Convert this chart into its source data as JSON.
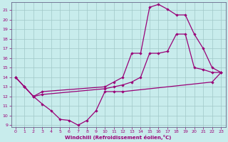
{
  "xlabel": "Windchill (Refroidissement éolien,°C)",
  "xlim": [
    -0.5,
    23.5
  ],
  "ylim": [
    8.8,
    21.8
  ],
  "xticks": [
    0,
    1,
    2,
    3,
    4,
    5,
    6,
    7,
    8,
    9,
    10,
    11,
    12,
    13,
    14,
    15,
    16,
    17,
    18,
    19,
    20,
    21,
    22,
    23
  ],
  "yticks": [
    9,
    10,
    11,
    12,
    13,
    14,
    15,
    16,
    17,
    18,
    19,
    20,
    21
  ],
  "bg_color": "#c8ecec",
  "line_color": "#990077",
  "grid_color": "#a0c8c8",
  "curve1_x": [
    0,
    1,
    2,
    3,
    4,
    5,
    6,
    7,
    8,
    9,
    10,
    11,
    12,
    22,
    23
  ],
  "curve1_y": [
    14.0,
    13.0,
    12.0,
    11.2,
    10.5,
    9.6,
    9.5,
    9.0,
    9.5,
    10.5,
    12.5,
    12.5,
    12.5,
    13.5,
    14.5
  ],
  "curve2_x": [
    0,
    1,
    2,
    3,
    10,
    11,
    12,
    13,
    14,
    15,
    16,
    17,
    18,
    19,
    20,
    21,
    22,
    23
  ],
  "curve2_y": [
    14.0,
    13.0,
    12.0,
    12.2,
    12.8,
    13.0,
    13.2,
    13.5,
    14.0,
    16.5,
    16.5,
    16.7,
    18.5,
    18.5,
    15.0,
    14.8,
    14.5,
    14.5
  ],
  "curve3_x": [
    0,
    1,
    2,
    3,
    10,
    11,
    12,
    13,
    14,
    15,
    16,
    17,
    18,
    19,
    20,
    21,
    22,
    23
  ],
  "curve3_y": [
    14.0,
    13.0,
    12.0,
    12.5,
    13.0,
    13.5,
    14.0,
    16.5,
    16.5,
    21.3,
    21.6,
    21.1,
    20.5,
    20.5,
    18.5,
    17.0,
    15.0,
    14.5
  ]
}
